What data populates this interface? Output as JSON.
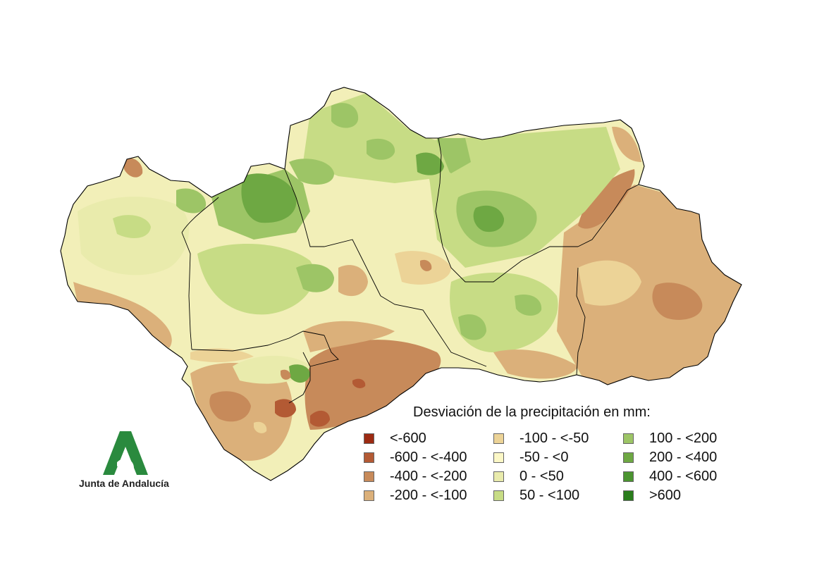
{
  "legend": {
    "title": "Desviación de la precipitación en mm:",
    "items": [
      {
        "label": "<-600",
        "color": "#9c2a12"
      },
      {
        "label": "-600 - <-400",
        "color": "#b35a34"
      },
      {
        "label": "-400 - <-200",
        "color": "#c78a5a"
      },
      {
        "label": "-200 - <-100",
        "color": "#dbb07a"
      },
      {
        "label": "-100 - <-50",
        "color": "#ecd397"
      },
      {
        "label": "-50 - <0",
        "color": "#fbf7c6"
      },
      {
        "label": "0 - <50",
        "color": "#e9ebac"
      },
      {
        "label": "50 - <100",
        "color": "#c7dc85"
      },
      {
        "label": "100 - <200",
        "color": "#9dc566"
      },
      {
        "label": "200 - <400",
        "color": "#6ea843"
      },
      {
        "label": "400 - <600",
        "color": "#4b9430"
      },
      {
        "label": ">600",
        "color": "#2a7d1c"
      }
    ]
  },
  "logo": {
    "text": "Junta de Andalucía",
    "icon": "junta-andalucia-a-logo",
    "color": "#2a8a3e"
  },
  "map": {
    "region": "Andalucía",
    "border_color": "#000000"
  }
}
